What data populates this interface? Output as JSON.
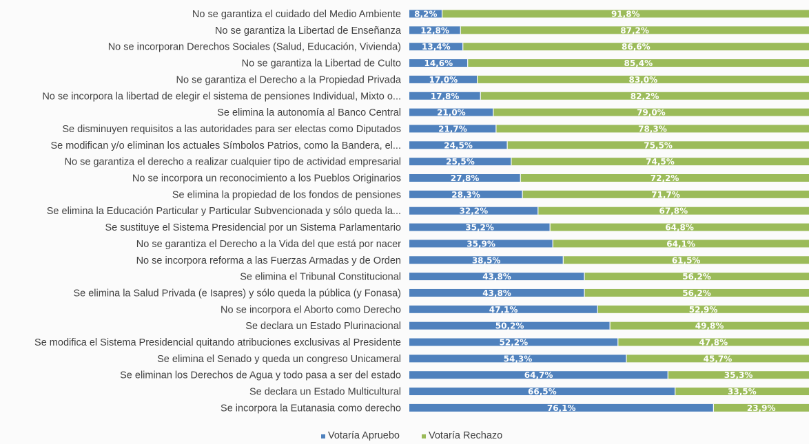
{
  "chart_data": {
    "type": "bar",
    "orientation": "horizontal",
    "stacked": true,
    "xlim": [
      0,
      100
    ],
    "grid": false,
    "legend_position": "bottom",
    "categories": [
      "No se garantiza el cuidado del Medio Ambiente",
      "No se garantiza la Libertad de Enseñanza",
      "No se incorporan Derechos Sociales (Salud, Educación, Vivienda)",
      "No se garantiza la Libertad de Culto",
      "No se garantiza el Derecho a la Propiedad Privada",
      "No se incorpora la libertad de elegir el sistema de pensiones Individual, Mixto o...",
      "Se elimina la autonomía al Banco Central",
      "Se disminuyen requisitos a las autoridades para ser electas como Diputados",
      "Se modifican y/o eliminan los actuales Símbolos Patrios, como la Bandera, el...",
      "No se garantiza el derecho a realizar cualquier tipo de actividad empresarial",
      "No se incorpora un reconocimiento a los Pueblos Originarios",
      "Se elimina la propiedad de los fondos de pensiones",
      "Se elimina la Educación Particular y Particular Subvencionada y sólo queda la...",
      "Se sustituye el Sistema Presidencial por un Sistema Parlamentario",
      "No se garantiza el Derecho a la Vida del que está por nacer",
      "No se incorpora reforma a las Fuerzas Armadas y de Orden",
      "Se elimina el Tribunal Constitucional",
      "Se elimina la Salud Privada (e Isapres) y sólo queda la pública (y Fonasa)",
      "No se incorpora el Aborto como Derecho",
      "Se declara un Estado Plurinacional",
      "Se modifica el Sistema Presidencial quitando atribuciones exclusivas al Presidente",
      "Se elimina el Senado y queda un congreso Unicameral",
      "Se eliminan los Derechos de Agua y todo pasa a ser del estado",
      "Se declara un Estado Multicultural",
      "Se incorpora la Eutanasia como derecho"
    ],
    "series": [
      {
        "name": "Votaría Apruebo",
        "color": "#4f81bd",
        "values": [
          8.2,
          12.8,
          13.4,
          14.6,
          17.0,
          17.8,
          21.0,
          21.7,
          24.5,
          25.5,
          27.8,
          28.3,
          32.2,
          35.2,
          35.9,
          38.5,
          43.8,
          43.8,
          47.1,
          50.2,
          52.2,
          54.3,
          64.7,
          66.5,
          76.1
        ],
        "labels": [
          "8,2%",
          "12,8%",
          "13,4%",
          "14,6%",
          "17,0%",
          "17,8%",
          "21,0%",
          "21,7%",
          "24,5%",
          "25,5%",
          "27,8%",
          "28,3%",
          "32,2%",
          "35,2%",
          "35,9%",
          "38,5%",
          "43,8%",
          "43,8%",
          "47,1%",
          "50,2%",
          "52,2%",
          "54,3%",
          "64,7%",
          "66,5%",
          "76,1%"
        ]
      },
      {
        "name": "Votaría Rechazo",
        "color": "#9bbb59",
        "values": [
          91.8,
          87.2,
          86.6,
          85.4,
          83.0,
          82.2,
          79.0,
          78.3,
          75.5,
          74.5,
          72.2,
          71.7,
          67.8,
          64.8,
          64.1,
          61.5,
          56.2,
          56.2,
          52.9,
          49.8,
          47.8,
          45.7,
          35.3,
          33.5,
          23.9
        ],
        "labels": [
          "91,8%",
          "87,2%",
          "86,6%",
          "85,4%",
          "83,0%",
          "82,2%",
          "79,0%",
          "78,3%",
          "75,5%",
          "74,5%",
          "72,2%",
          "71,7%",
          "67,8%",
          "64,8%",
          "64,1%",
          "61,5%",
          "56,2%",
          "56,2%",
          "52,9%",
          "49,8%",
          "47,8%",
          "45,7%",
          "35,3%",
          "33,5%",
          "23,9%"
        ]
      }
    ]
  }
}
